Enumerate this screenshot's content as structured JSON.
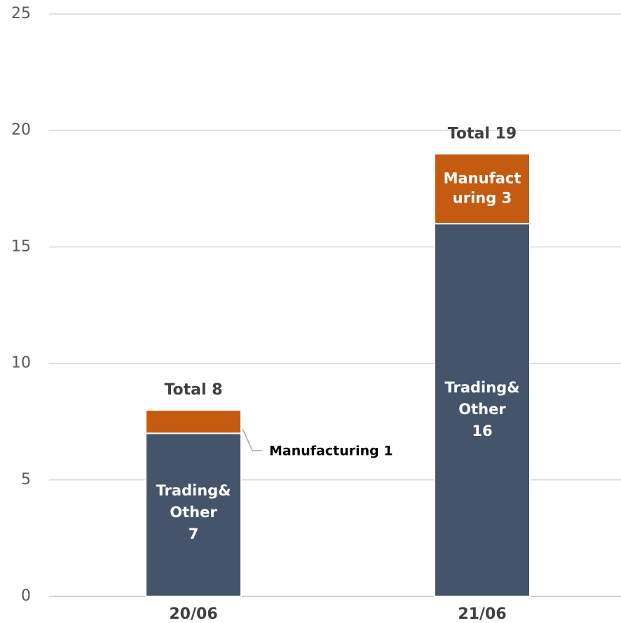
{
  "chart_data": {
    "type": "bar",
    "stacked": true,
    "categories": [
      "20/06",
      "21/06"
    ],
    "series": [
      {
        "name": "Trading&Other",
        "values": [
          7,
          16
        ],
        "color": "#44546a"
      },
      {
        "name": "Manufacturing",
        "values": [
          1,
          3
        ],
        "color": "#c55a11"
      }
    ],
    "segment_labels": {
      "trading_other": [
        [
          "Trading&",
          "Other",
          "7"
        ],
        [
          "Trading&",
          "Other",
          "16"
        ]
      ],
      "manufacturing": [
        "Manufacturing 1",
        [
          "Manufact",
          "uring 3"
        ]
      ]
    },
    "totals": [
      "Total 8",
      "Total 19"
    ],
    "ylim": [
      0,
      25
    ],
    "yticks": [
      "0",
      "5",
      "10",
      "15",
      "20",
      "25"
    ],
    "grid": true,
    "title": "",
    "xlabel": "",
    "ylabel": ""
  }
}
